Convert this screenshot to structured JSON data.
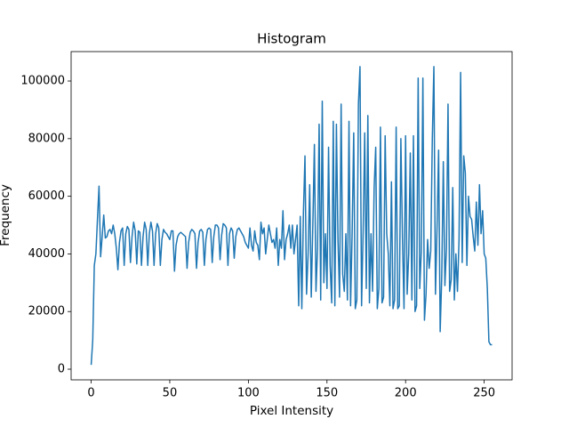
{
  "chart_data": {
    "type": "line",
    "title": "Histogram",
    "x_label": "Pixel Intensity",
    "y_label": "Frequency",
    "x": [
      0,
      1,
      2,
      3,
      4,
      5,
      6,
      7,
      8,
      9,
      10,
      11,
      12,
      13,
      14,
      15,
      16,
      17,
      18,
      19,
      20,
      21,
      22,
      23,
      24,
      25,
      26,
      27,
      28,
      29,
      30,
      31,
      32,
      33,
      34,
      35,
      36,
      37,
      38,
      39,
      40,
      41,
      42,
      43,
      44,
      45,
      46,
      47,
      48,
      49,
      50,
      51,
      52,
      53,
      54,
      55,
      56,
      57,
      58,
      59,
      60,
      61,
      62,
      63,
      64,
      65,
      66,
      67,
      68,
      69,
      70,
      71,
      72,
      73,
      74,
      75,
      76,
      77,
      78,
      79,
      80,
      81,
      82,
      83,
      84,
      85,
      86,
      87,
      88,
      89,
      90,
      91,
      92,
      93,
      94,
      95,
      96,
      97,
      98,
      99,
      100,
      101,
      102,
      103,
      104,
      105,
      106,
      107,
      108,
      109,
      110,
      111,
      112,
      113,
      114,
      115,
      116,
      117,
      118,
      119,
      120,
      121,
      122,
      123,
      124,
      125,
      126,
      127,
      128,
      129,
      130,
      131,
      132,
      133,
      134,
      135,
      136,
      137,
      138,
      139,
      140,
      141,
      142,
      143,
      144,
      145,
      146,
      147,
      148,
      149,
      150,
      151,
      152,
      153,
      154,
      155,
      156,
      157,
      158,
      159,
      160,
      161,
      162,
      163,
      164,
      165,
      166,
      167,
      168,
      169,
      170,
      171,
      172,
      173,
      174,
      175,
      176,
      177,
      178,
      179,
      180,
      181,
      182,
      183,
      184,
      185,
      186,
      187,
      188,
      189,
      190,
      191,
      192,
      193,
      194,
      195,
      196,
      197,
      198,
      199,
      200,
      201,
      202,
      203,
      204,
      205,
      206,
      207,
      208,
      209,
      210,
      211,
      212,
      213,
      214,
      215,
      216,
      217,
      218,
      219,
      220,
      221,
      222,
      223,
      224,
      225,
      226,
      227,
      228,
      229,
      230,
      231,
      232,
      233,
      234,
      235,
      236,
      237,
      238,
      239,
      240,
      241,
      242,
      243,
      244,
      245,
      246,
      247,
      248,
      249,
      250,
      251,
      252,
      253,
      254,
      255
    ],
    "series": [
      {
        "color": "#1f77b4",
        "values": [
          1500,
          10000,
          36000,
          40000,
          52000,
          63500,
          39000,
          46000,
          53500,
          45500,
          46000,
          48000,
          48500,
          47000,
          50000,
          47000,
          42000,
          34500,
          44000,
          48000,
          49000,
          36000,
          47000,
          49500,
          48500,
          37000,
          46000,
          51000,
          48000,
          36500,
          48000,
          47500,
          36000,
          46000,
          51000,
          48500,
          36000,
          47000,
          51000,
          48000,
          36000,
          47000,
          50500,
          49000,
          36000,
          45000,
          48500,
          47500,
          47000,
          46000,
          45000,
          48000,
          48000,
          34000,
          43000,
          46000,
          47000,
          47500,
          47000,
          46500,
          46000,
          35000,
          44000,
          47500,
          48500,
          48000,
          47000,
          35000,
          44000,
          48000,
          48500,
          47500,
          36000,
          45000,
          48500,
          49000,
          48500,
          37000,
          46000,
          50000,
          50000,
          49000,
          38000,
          46500,
          50500,
          50000,
          49000,
          36000,
          47000,
          49000,
          48000,
          38500,
          46000,
          48500,
          49000,
          48000,
          47000,
          46000,
          44000,
          43000,
          42000,
          49000,
          43000,
          41000,
          48000,
          44000,
          43000,
          38000,
          51000,
          47000,
          49000,
          40000,
          45000,
          50000,
          47000,
          44000,
          45000,
          42000,
          49000,
          36000,
          45000,
          42000,
          55000,
          38000,
          45000,
          47000,
          50000,
          42000,
          50000,
          40000,
          45000,
          50000,
          22000,
          53000,
          21000,
          54000,
          74000,
          26000,
          40000,
          64000,
          25000,
          50000,
          78000,
          27000,
          42000,
          85000,
          24000,
          93000,
          30000,
          47000,
          28000,
          77000,
          36000,
          23000,
          86000,
          22000,
          85000,
          45000,
          25000,
          92000,
          33000,
          27000,
          47000,
          24000,
          86000,
          22000,
          47000,
          82000,
          21000,
          24000,
          92000,
          105000,
          22000,
          48000,
          82000,
          28000,
          88000,
          23000,
          47000,
          27000,
          63000,
          77000,
          21000,
          28000,
          84000,
          23000,
          25000,
          81000,
          47000,
          40000,
          22000,
          65000,
          21000,
          24000,
          84000,
          21000,
          22000,
          80000,
          46000,
          21000,
          81000,
          26000,
          40000,
          75000,
          24000,
          81000,
          20000,
          22000,
          101000,
          28000,
          41000,
          101000,
          17000,
          26000,
          45000,
          35000,
          41000,
          80000,
          105000,
          26000,
          49000,
          76000,
          13000,
          32000,
          72000,
          29000,
          42000,
          92000,
          27000,
          31000,
          63000,
          24000,
          40000,
          27000,
          45000,
          103000,
          37000,
          74000,
          68000,
          36000,
          60000,
          53000,
          52000,
          46000,
          41000,
          58000,
          43000,
          64000,
          47000,
          55000,
          40000,
          38500,
          28000,
          9500,
          8500,
          8500
        ]
      }
    ],
    "xlim": [
      -12.75,
      267.75
    ],
    "ylim": [
      -3700,
      110200
    ],
    "xticks": [
      0,
      50,
      100,
      150,
      200,
      250
    ],
    "yticks": [
      0,
      20000,
      40000,
      60000,
      80000,
      100000
    ]
  }
}
